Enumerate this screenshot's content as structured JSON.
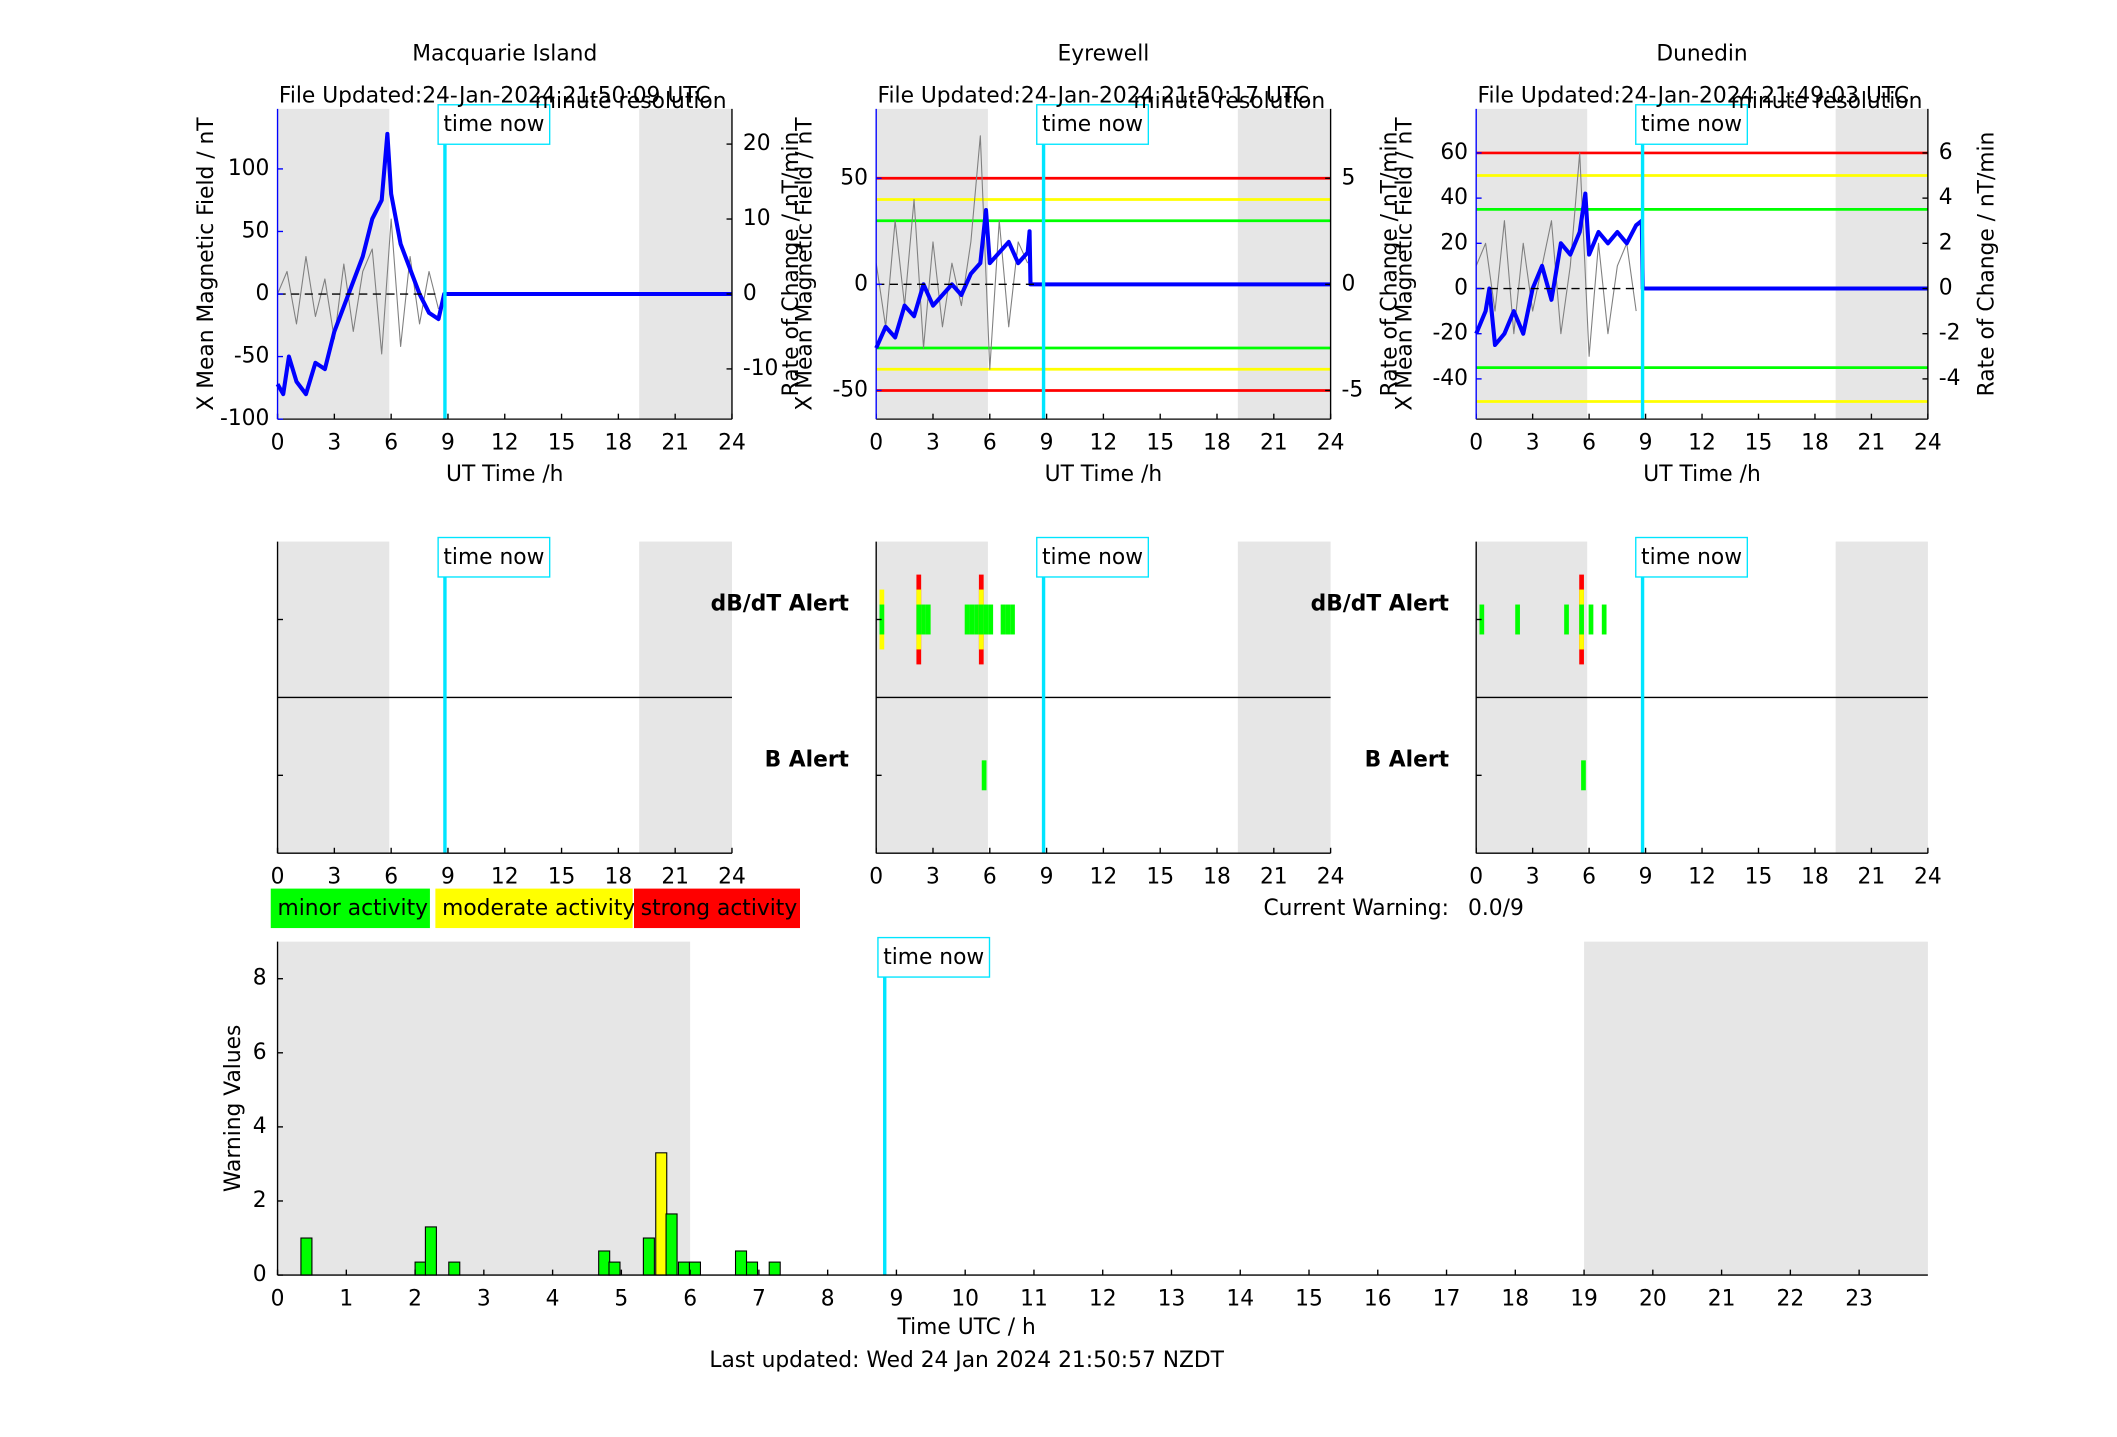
{
  "chart_data": [
    {
      "type": "line",
      "title": "Macquarie Island",
      "subtitle": "File Updated:24-Jan-2024 21:50:09 UTC",
      "resolution": "minute resolution",
      "annotation": "time now",
      "time_now": 8.84,
      "time_now_color": "#00e5ff",
      "xlabel": "UT Time /h",
      "ylabel": "X Mean Magnetic Field / nT",
      "y2label": "Rate of Change / nT/min",
      "xlim": [
        0,
        24
      ],
      "xticks": [
        0,
        3,
        6,
        9,
        12,
        15,
        18,
        21,
        24
      ],
      "ylim": [
        -100,
        148
      ],
      "yticks": [
        -100,
        -50,
        0,
        50,
        100
      ],
      "y2lim": [
        -16.7,
        24.7
      ],
      "y2ticks": [
        -10,
        0,
        10,
        20
      ],
      "shaded": [
        [
          0,
          5.9
        ],
        [
          19.1,
          24
        ]
      ],
      "thresholds": [],
      "series": [
        {
          "color": "#808080",
          "axis": "y2",
          "x": [
            0,
            0.5,
            1,
            1.5,
            2,
            2.5,
            3,
            3.5,
            4,
            4.5,
            5,
            5.5,
            6,
            6.5,
            7,
            7.5,
            8,
            8.5
          ],
          "values": [
            0,
            3,
            -4,
            5,
            -3,
            2,
            -6,
            4,
            -5,
            3,
            6,
            -8,
            10,
            -7,
            5,
            -4,
            3,
            -2
          ]
        },
        {
          "color": "#0000ff",
          "axis": "y",
          "x": [
            0,
            0.3,
            0.6,
            1,
            1.5,
            2,
            2.5,
            3,
            3.5,
            4,
            4.5,
            5,
            5.5,
            5.8,
            6,
            6.5,
            7,
            7.5,
            8,
            8.5,
            8.8,
            24
          ],
          "values": [
            -72,
            -80,
            -50,
            -70,
            -80,
            -55,
            -60,
            -30,
            -10,
            10,
            30,
            60,
            75,
            128,
            80,
            40,
            20,
            0,
            -15,
            -20,
            0,
            0
          ]
        }
      ]
    },
    {
      "type": "line",
      "title": "Eyrewell",
      "subtitle": "File Updated:24-Jan-2024 21:50:17 UTC",
      "resolution": "minute resolution",
      "annotation": "time now",
      "time_now": 8.84,
      "time_now_color": "#00e5ff",
      "xlabel": "UT Time /h",
      "ylabel": "X Mean Magnetic Field / nT",
      "y2label": "Rate of Change / nT/min",
      "xlim": [
        0,
        24
      ],
      "xticks": [
        0,
        3,
        6,
        9,
        12,
        15,
        18,
        21,
        24
      ],
      "ylim": [
        -63.5,
        82.7
      ],
      "yticks": [
        -50,
        0,
        50
      ],
      "y2lim": [
        -6.35,
        8.27
      ],
      "y2ticks": [
        -5,
        0,
        5
      ],
      "shaded": [
        [
          0,
          5.9
        ],
        [
          19.1,
          24
        ]
      ],
      "thresholds": [
        {
          "value": 50,
          "color": "#ff0000"
        },
        {
          "value": 40,
          "color": "#ffff00"
        },
        {
          "value": 30,
          "color": "#00ff00"
        },
        {
          "value": -30,
          "color": "#00ff00"
        },
        {
          "value": -40,
          "color": "#ffff00"
        },
        {
          "value": -50,
          "color": "#ff0000"
        }
      ],
      "series": [
        {
          "color": "#808080",
          "axis": "y2",
          "x": [
            0,
            0.5,
            1,
            1.5,
            2,
            2.5,
            3,
            3.5,
            4,
            4.5,
            5,
            5.5,
            6,
            6.5,
            7,
            7.5,
            8
          ],
          "values": [
            1,
            -2,
            3,
            -1,
            4,
            -3,
            2,
            -2,
            1,
            -1,
            2,
            7,
            -4,
            3,
            -2,
            2,
            1
          ]
        },
        {
          "color": "#0000ff",
          "axis": "y",
          "x": [
            0,
            0.5,
            1,
            1.5,
            2,
            2.5,
            3,
            3.5,
            4,
            4.5,
            5,
            5.5,
            5.8,
            6,
            6.5,
            7,
            7.5,
            8,
            8.1,
            8.15,
            24
          ],
          "values": [
            -30,
            -20,
            -25,
            -10,
            -15,
            0,
            -10,
            -5,
            0,
            -5,
            5,
            10,
            35,
            10,
            15,
            20,
            10,
            15,
            25,
            0,
            0
          ]
        }
      ]
    },
    {
      "type": "line",
      "title": "Dunedin",
      "subtitle": "File Updated:24-Jan-2024 21:49:03 UTC",
      "resolution": "minute resolution",
      "annotation": "time now",
      "time_now": 8.84,
      "time_now_color": "#00e5ff",
      "xlabel": "UT Time /h",
      "ylabel": "X Mean Magnetic Field / nT",
      "y2label": "Rate of Change / nT/min",
      "xlim": [
        0,
        24
      ],
      "xticks": [
        0,
        3,
        6,
        9,
        12,
        15,
        18,
        21,
        24
      ],
      "ylim": [
        -57.8,
        79.5
      ],
      "yticks": [
        -40,
        -20,
        0,
        20,
        40,
        60
      ],
      "y2lim": [
        -5.78,
        7.95
      ],
      "y2ticks": [
        -4,
        -2,
        0,
        2,
        4,
        6
      ],
      "shaded": [
        [
          0,
          5.9
        ],
        [
          19.1,
          24
        ]
      ],
      "thresholds": [
        {
          "value": 60,
          "color": "#ff0000"
        },
        {
          "value": 50,
          "color": "#ffff00"
        },
        {
          "value": 35,
          "color": "#00ff00"
        },
        {
          "value": -35,
          "color": "#00ff00"
        },
        {
          "value": -50,
          "color": "#ffff00"
        }
      ],
      "series": [
        {
          "color": "#808080",
          "axis": "y2",
          "x": [
            0,
            0.5,
            1,
            1.5,
            2,
            2.5,
            3,
            3.5,
            4,
            4.5,
            5,
            5.5,
            6,
            6.5,
            7,
            7.5,
            8,
            8.5
          ],
          "values": [
            1,
            2,
            -1,
            3,
            -2,
            2,
            -1,
            1,
            3,
            -2,
            1,
            6,
            -3,
            2,
            -2,
            1,
            2,
            -1
          ]
        },
        {
          "color": "#0000ff",
          "axis": "y",
          "x": [
            0,
            0.5,
            0.7,
            1,
            1.5,
            2,
            2.5,
            3,
            3.5,
            4,
            4.5,
            5,
            5.5,
            5.8,
            6,
            6.5,
            7,
            7.5,
            8,
            8.5,
            8.8,
            8.85,
            24
          ],
          "values": [
            -20,
            -10,
            0,
            -25,
            -20,
            -10,
            -20,
            0,
            10,
            -5,
            20,
            15,
            25,
            42,
            15,
            25,
            20,
            25,
            20,
            28,
            30,
            0,
            0
          ]
        }
      ]
    },
    {
      "type": "alert",
      "annotation": "time now",
      "time_now": 8.84,
      "time_now_color": "#00e5ff",
      "xlim": [
        0,
        24
      ],
      "xticks": [
        0,
        3,
        6,
        9,
        12,
        15,
        18,
        21,
        24
      ],
      "shaded": [
        [
          0,
          5.9
        ],
        [
          19.1,
          24
        ]
      ],
      "rows": [
        {
          "x": [],
          "values": []
        },
        {
          "x": [],
          "values": []
        }
      ]
    },
    {
      "type": "alert",
      "annotation": "time now",
      "time_now": 8.84,
      "time_now_color": "#00e5ff",
      "xlim": [
        0,
        24
      ],
      "xticks": [
        0,
        3,
        6,
        9,
        12,
        15,
        18,
        21,
        24
      ],
      "shaded": [
        [
          0,
          5.9
        ],
        [
          19.1,
          24
        ]
      ],
      "rows": [
        {
          "name": "dB/dT Alert",
          "color": "#000000",
          "x": [
            0.3,
            2.25,
            2.5,
            2.75,
            4.8,
            5.05,
            5.3,
            5.55,
            5.8,
            6.05,
            6.7,
            6.95,
            7.2
          ],
          "values": [
            2,
            3,
            1,
            1,
            1,
            1,
            1,
            3,
            1,
            1,
            1,
            1,
            1
          ]
        },
        {
          "name": "B Alert",
          "color": "#0000ff",
          "x": [
            5.7
          ],
          "values": [
            1
          ]
        }
      ]
    },
    {
      "type": "alert",
      "annotation": "time now",
      "time_now": 8.84,
      "time_now_color": "#00e5ff",
      "xlim": [
        0,
        24
      ],
      "xticks": [
        0,
        3,
        6,
        9,
        12,
        15,
        18,
        21,
        24
      ],
      "shaded": [
        [
          0,
          5.9
        ],
        [
          19.1,
          24
        ]
      ],
      "rows": [
        {
          "name": "dB/dT Alert",
          "color": "#000000",
          "x": [
            0.3,
            2.2,
            4.8,
            5.6,
            6.1,
            6.8
          ],
          "values": [
            1,
            1,
            1,
            3,
            1,
            1
          ]
        },
        {
          "name": "B Alert",
          "color": "#0000ff",
          "x": [
            5.7
          ],
          "values": [
            1
          ]
        }
      ]
    },
    {
      "type": "bar",
      "annotation": "time now",
      "time_now": 8.83,
      "time_now_color": "#00e5ff",
      "xlabel": "Time UTC / h",
      "ylabel": "Warning Values",
      "note": "Last updated: Wed 24 Jan 2024 21:50:57 NZDT",
      "current_label": "Current Warning:",
      "current_value": "0.0/9",
      "legend": [
        {
          "name": "minor activity",
          "color": "#00ff00"
        },
        {
          "name": "moderate activity",
          "color": "#ffff00"
        },
        {
          "name": "strong activity",
          "color": "#ff0000"
        }
      ],
      "xlim": [
        0,
        24
      ],
      "xticks": [
        0,
        1,
        2,
        3,
        4,
        5,
        6,
        7,
        8,
        9,
        10,
        11,
        12,
        13,
        14,
        15,
        16,
        17,
        18,
        19,
        20,
        21,
        22,
        23
      ],
      "ylim": [
        0,
        9
      ],
      "yticks": [
        0,
        2,
        4,
        6,
        8
      ],
      "shaded": [
        [
          0,
          6
        ],
        [
          19,
          24
        ]
      ],
      "x": [
        0.42,
        2.08,
        2.23,
        2.57,
        4.75,
        4.9,
        5.4,
        5.58,
        5.73,
        5.91,
        6.07,
        6.74,
        6.9,
        7.23
      ],
      "values": [
        1,
        0.35,
        1.3,
        0.35,
        0.65,
        0.35,
        1,
        3.3,
        1.65,
        0.35,
        0.35,
        0.65,
        0.35,
        0.35
      ],
      "colors": [
        "#00ff00",
        "#00ff00",
        "#00ff00",
        "#00ff00",
        "#00ff00",
        "#00ff00",
        "#00ff00",
        "#ffff00",
        "#00ff00",
        "#00ff00",
        "#00ff00",
        "#00ff00",
        "#00ff00",
        "#00ff00"
      ]
    }
  ]
}
